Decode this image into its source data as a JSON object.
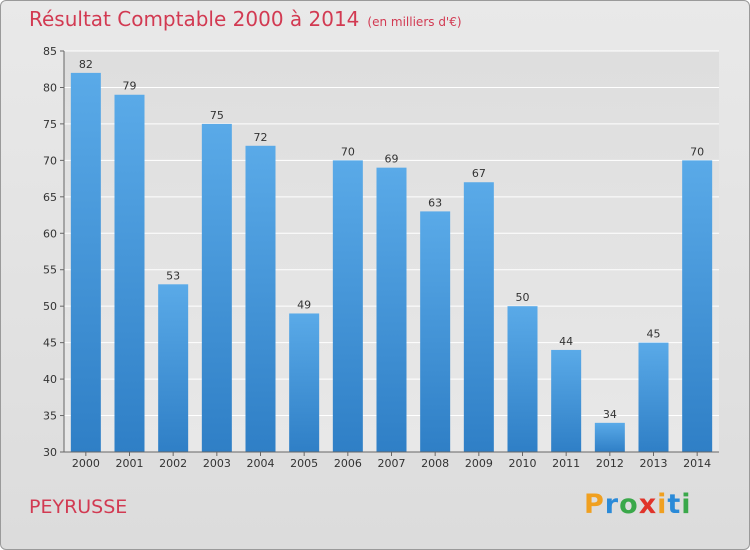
{
  "title": "Résultat Comptable 2000 à 2014",
  "subtitle": "(en milliers d'€)",
  "commune": "PEYRUSSE",
  "logo": {
    "letters": [
      "P",
      "r",
      "o",
      "x",
      "i",
      "t",
      "i"
    ],
    "colors": [
      "#f0a020",
      "#2a8ad8",
      "#3aa84a",
      "#e0342a",
      "#f0a020",
      "#2a8ad8",
      "#3aa84a"
    ]
  },
  "colors": {
    "bar": "#2f7fc6",
    "bar_light": "#5aaae8",
    "title": "#d23a52"
  },
  "chart_data": {
    "type": "bar",
    "title": "Résultat Comptable 2000 à 2014",
    "xlabel": "",
    "ylabel": "",
    "categories": [
      "2000",
      "2001",
      "2002",
      "2003",
      "2004",
      "2005",
      "2006",
      "2007",
      "2008",
      "2009",
      "2010",
      "2011",
      "2012",
      "2013",
      "2014"
    ],
    "values": [
      82,
      79,
      53,
      75,
      72,
      49,
      70,
      69,
      63,
      67,
      50,
      44,
      34,
      45,
      70
    ],
    "ylim": [
      30,
      85
    ],
    "yticks": [
      30,
      35,
      40,
      45,
      50,
      55,
      60,
      65,
      70,
      75,
      80,
      85
    ],
    "grid": true
  }
}
